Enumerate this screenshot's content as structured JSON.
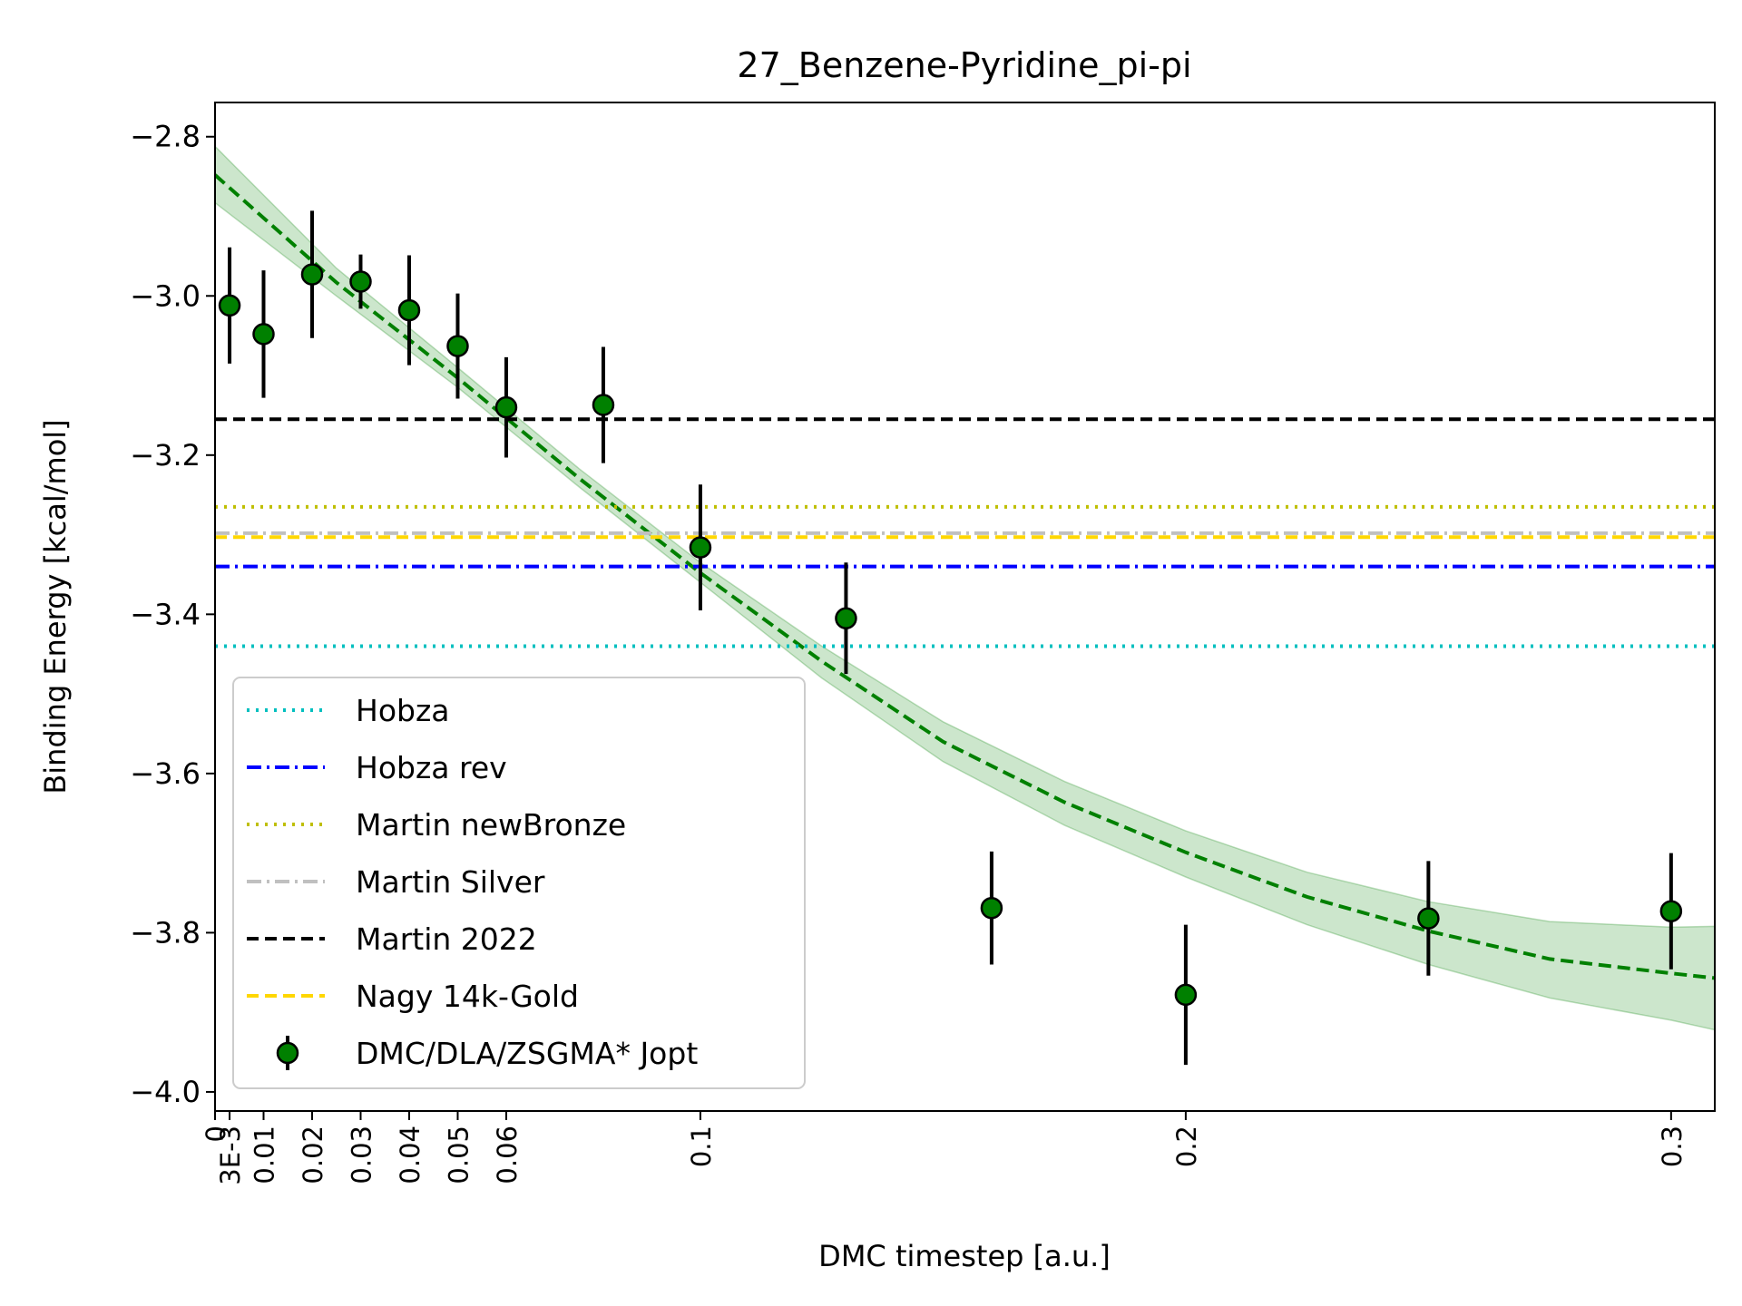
{
  "chart_data": {
    "type": "scatter",
    "title": "27_Benzene-Pyridine_pi-pi",
    "xlabel": "DMC timestep [a.u.]",
    "ylabel": "Binding Energy [kcal/mol]",
    "xlim": [
      0,
      0.309
    ],
    "ylim": [
      -4.024,
      -2.757
    ],
    "x_ticks": [
      {
        "value": 0,
        "label": "0"
      },
      {
        "value": 0.003,
        "label": "3E-3"
      },
      {
        "value": 0.01,
        "label": "0.01"
      },
      {
        "value": 0.02,
        "label": "0.02"
      },
      {
        "value": 0.03,
        "label": "0.03"
      },
      {
        "value": 0.04,
        "label": "0.04"
      },
      {
        "value": 0.05,
        "label": "0.05"
      },
      {
        "value": 0.06,
        "label": "0.06"
      },
      {
        "value": 0.1,
        "label": "0.1"
      },
      {
        "value": 0.2,
        "label": "0.2"
      },
      {
        "value": 0.3,
        "label": "0.3"
      }
    ],
    "y_ticks": [
      {
        "value": -2.8,
        "label": "−2.8"
      },
      {
        "value": -3.0,
        "label": "−3.0"
      },
      {
        "value": -3.2,
        "label": "−3.2"
      },
      {
        "value": -3.4,
        "label": "−3.4"
      },
      {
        "value": -3.6,
        "label": "−3.6"
      },
      {
        "value": -3.8,
        "label": "−3.8"
      },
      {
        "value": -4.0,
        "label": "−4.0"
      }
    ],
    "grid": false,
    "legend_position": "lower-left",
    "reference_lines": [
      {
        "name": "Hobza",
        "y": -3.44,
        "color": "#00bfbf",
        "style": "dotted"
      },
      {
        "name": "Hobza rev",
        "y": -3.34,
        "color": "#0000ff",
        "style": "dashdot"
      },
      {
        "name": "Martin newBronze",
        "y": -3.265,
        "color": "#bfbf00",
        "style": "dotted"
      },
      {
        "name": "Martin Silver",
        "y": -3.298,
        "color": "#c0c0c0",
        "style": "dashdot"
      },
      {
        "name": "Martin 2022",
        "y": -3.155,
        "color": "#000000",
        "style": "dashed"
      },
      {
        "name": "Nagy 14k-Gold",
        "y": -3.303,
        "color": "#ffd700",
        "style": "dashed"
      }
    ],
    "series": [
      {
        "name": "DMC/DLA/ZSGMA* Jopt",
        "color": "#008000",
        "points": [
          {
            "x": 0.003,
            "y": -3.012,
            "err": 0.073
          },
          {
            "x": 0.01,
            "y": -3.048,
            "err": 0.08
          },
          {
            "x": 0.02,
            "y": -2.973,
            "err": 0.08
          },
          {
            "x": 0.03,
            "y": -2.982,
            "err": 0.034
          },
          {
            "x": 0.04,
            "y": -3.018,
            "err": 0.069
          },
          {
            "x": 0.05,
            "y": -3.063,
            "err": 0.066
          },
          {
            "x": 0.06,
            "y": -3.14,
            "err": 0.063
          },
          {
            "x": 0.08,
            "y": -3.137,
            "err": 0.073
          },
          {
            "x": 0.1,
            "y": -3.316,
            "err": 0.079
          },
          {
            "x": 0.13,
            "y": -3.405,
            "err": 0.07
          },
          {
            "x": 0.16,
            "y": -3.769,
            "err": 0.071
          },
          {
            "x": 0.2,
            "y": -3.878,
            "err": 0.088
          },
          {
            "x": 0.25,
            "y": -3.782,
            "err": 0.072
          },
          {
            "x": 0.3,
            "y": -3.773,
            "err": 0.073
          }
        ]
      }
    ],
    "fit": {
      "color": "#008000",
      "band_color": "#008000",
      "x": [
        0,
        0.025,
        0.05,
        0.075,
        0.1,
        0.125,
        0.15,
        0.175,
        0.2,
        0.225,
        0.25,
        0.275,
        0.3,
        0.309
      ],
      "y": [
        -2.848,
        -2.983,
        -3.103,
        -3.229,
        -3.348,
        -3.459,
        -3.56,
        -3.636,
        -3.699,
        -3.755,
        -3.798,
        -3.833,
        -3.851,
        -3.857
      ],
      "lower": [
        -2.883,
        -3.0,
        -3.115,
        -3.24,
        -3.36,
        -3.48,
        -3.585,
        -3.665,
        -3.73,
        -3.79,
        -3.84,
        -3.882,
        -3.91,
        -3.922
      ],
      "upper": [
        -2.812,
        -2.965,
        -3.09,
        -3.217,
        -3.335,
        -3.44,
        -3.535,
        -3.61,
        -3.672,
        -3.724,
        -3.761,
        -3.786,
        -3.793,
        -3.792
      ]
    }
  }
}
